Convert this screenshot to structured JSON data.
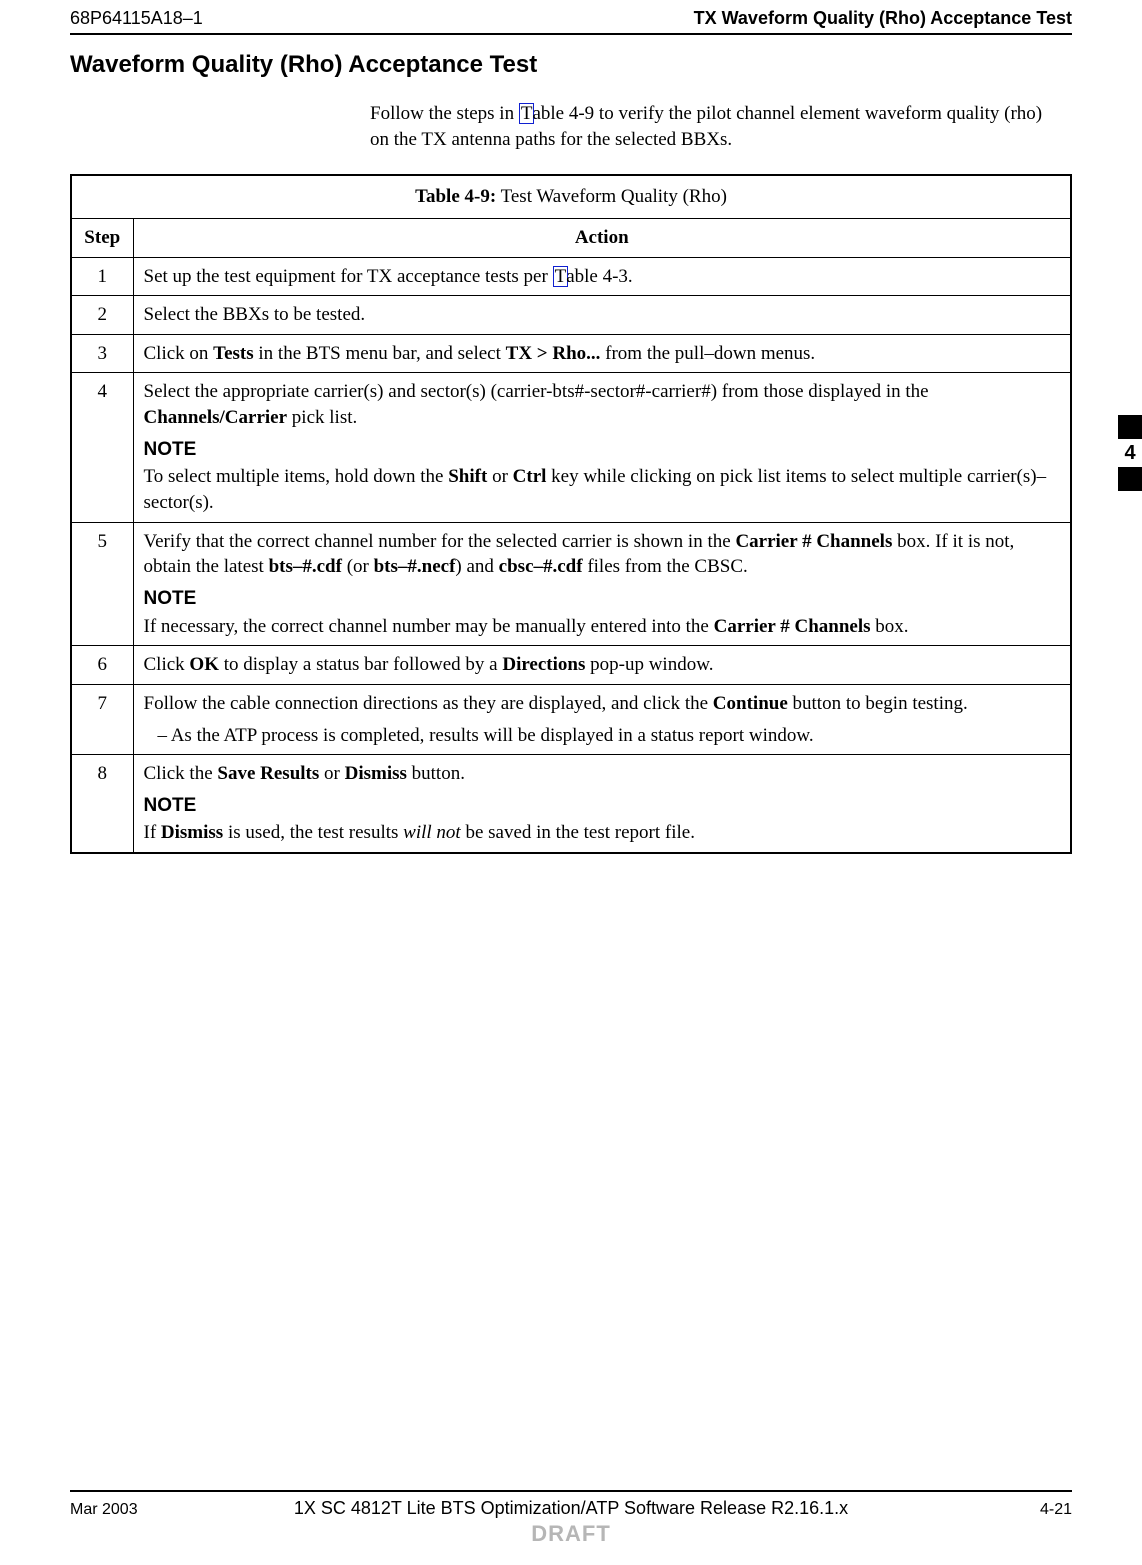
{
  "header": {
    "doc_number": "68P64115A18–1",
    "title": "TX Waveform Quality (Rho) Acceptance Test"
  },
  "section_title": "Waveform Quality (Rho) Acceptance Test",
  "intro": {
    "pre_link": "Follow the steps in ",
    "link_char": "T",
    "post_link": "able 4-9 to verify the pilot channel element waveform quality (rho) on the TX antenna paths for the selected BBXs."
  },
  "table": {
    "caption_label": "Table 4-9:",
    "caption_text": " Test Waveform Quality (Rho)",
    "col_step": "Step",
    "col_action": "Action",
    "rows": {
      "r1": {
        "step": "1",
        "pre": "Set up the test equipment for TX acceptance tests per ",
        "link": "T",
        "post": "able 4-3."
      },
      "r2": {
        "step": "2",
        "text": "Select the BBXs to be tested."
      },
      "r3": {
        "step": "3",
        "a": "Click on ",
        "b": "Tests",
        "c": " in the BTS menu bar, and select ",
        "d": "TX > Rho...",
        "e": " from the pull–down menus."
      },
      "r4": {
        "step": "4",
        "p1a": "Select the appropriate carrier(s) and sector(s) (carrier-bts#-sector#-carrier#) from those displayed in the ",
        "p1b": "Channels/Carrier",
        "p1c": " pick list.",
        "note": "NOTE",
        "p2a": "To select multiple items, hold down the ",
        "p2b": "Shift",
        "p2c": " or ",
        "p2d": "Ctrl",
        "p2e": " key while clicking on pick list items to select multiple carrier(s)–sector(s)."
      },
      "r5": {
        "step": "5",
        "p1a": "Verify that the correct channel number for the selected carrier is shown in the ",
        "p1b": "Carrier # Channels",
        "p1c": " box. If it is not, obtain the latest ",
        "p1d": "bts–#.cdf",
        "p1e": " (or ",
        "p1f": "bts–#.necf",
        "p1g": ") and ",
        "p1h": "cbsc–#.cdf",
        "p1i": " files from the CBSC.",
        "note": "NOTE",
        "p2a": "If necessary, the correct channel number may be manually entered into the ",
        "p2b": "Carrier # Channels",
        "p2c": " box."
      },
      "r6": {
        "step": "6",
        "a": "Click ",
        "b": "OK",
        "c": " to display a status bar followed by a ",
        "d": "Directions",
        "e": " pop-up window."
      },
      "r7": {
        "step": "7",
        "p1a": "Follow the cable connection directions as they are displayed, and click the ",
        "p1b": "Continue",
        "p1c": " button to begin testing.",
        "dash": "– As the ATP process is completed, results will be displayed in a status report window."
      },
      "r8": {
        "step": "8",
        "p1a": "Click the ",
        "p1b": "Save Results",
        "p1c": " or ",
        "p1d": "Dismiss",
        "p1e": " button.",
        "note": "NOTE",
        "p2a": "If ",
        "p2b": "Dismiss",
        "p2c": " is used, the test results ",
        "p2d": "will not",
        "p2e": " be saved in the test report file."
      }
    }
  },
  "side_tab": "4",
  "footer": {
    "left": "Mar 2003",
    "center": "1X SC 4812T Lite BTS Optimization/ATP Software Release R2.16.1.x",
    "right": "4-21",
    "draft": "DRAFT"
  }
}
